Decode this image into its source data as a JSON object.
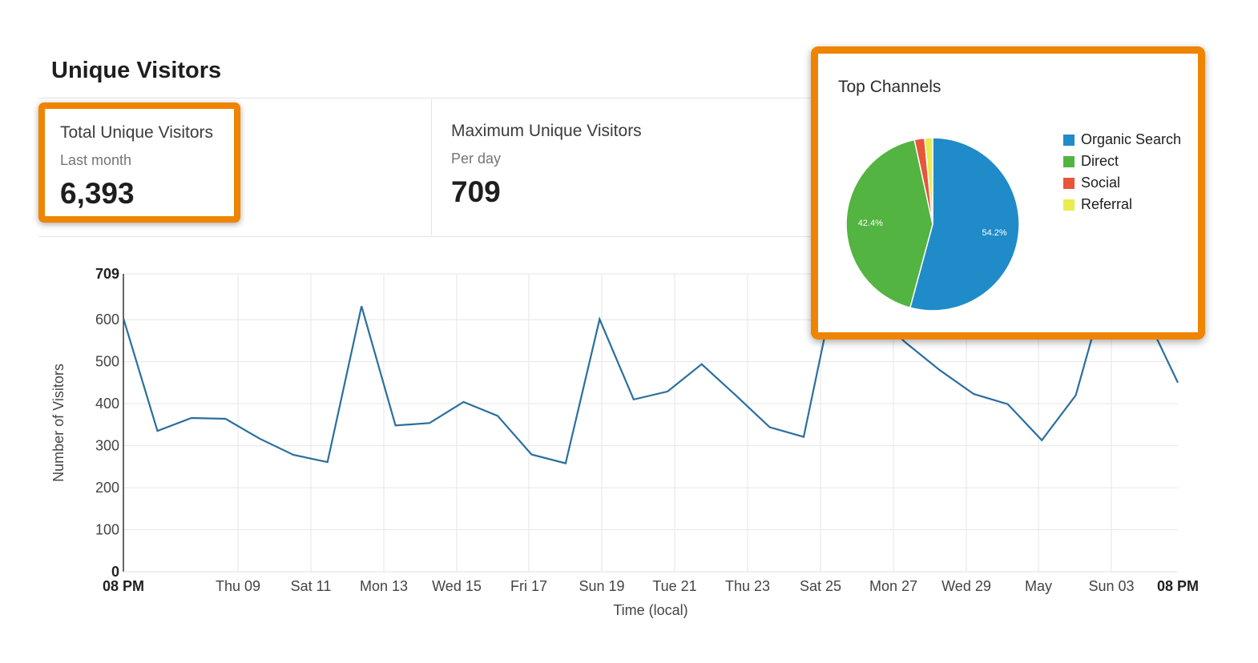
{
  "header": {
    "title": "Unique Visitors"
  },
  "stats": [
    {
      "label": "Total Unique Visitors",
      "sublabel": "Last month",
      "value": "6,393"
    },
    {
      "label": "Maximum Unique Visitors",
      "sublabel": "Per day",
      "value": "709"
    }
  ],
  "highlight_color": "#ef8400",
  "chart_data": [
    {
      "type": "line",
      "xlabel": "Time (local)",
      "ylabel": "Number of Visitors",
      "ylim": [
        0,
        709
      ],
      "y_ticks": [
        0,
        100,
        200,
        300,
        400,
        500,
        600,
        709
      ],
      "x_ticks": [
        "08 PM",
        "Thu 09",
        "Sat 11",
        "Mon 13",
        "Wed 15",
        "Fri 17",
        "Sun 19",
        "Tue 21",
        "Thu 23",
        "Sat 25",
        "Mon 27",
        "Wed 29",
        "May",
        "Sun 03",
        "08 PM"
      ],
      "grid": true,
      "series": [
        {
          "color": "#2b6f9e",
          "values": [
            603,
            335,
            366,
            364,
            317,
            278,
            261,
            632,
            348,
            354,
            404,
            371,
            279,
            258,
            601,
            410,
            429,
            494,
            420,
            344,
            321,
            709,
            620,
            545,
            480,
            423,
            399,
            313,
            420,
            709,
            620,
            450
          ]
        }
      ]
    },
    {
      "type": "pie",
      "title": "Top Channels",
      "legend": "right",
      "slices": [
        {
          "label": "Organic Search",
          "value": 54.2,
          "display": "54.2%",
          "color": "#1f8bc9"
        },
        {
          "label": "Direct",
          "value": 42.4,
          "display": "42.4%",
          "color": "#53b441"
        },
        {
          "label": "Social",
          "value": 1.9,
          "color": "#e8553a"
        },
        {
          "label": "Referral",
          "value": 1.5,
          "color": "#e8ed4d"
        }
      ]
    }
  ]
}
